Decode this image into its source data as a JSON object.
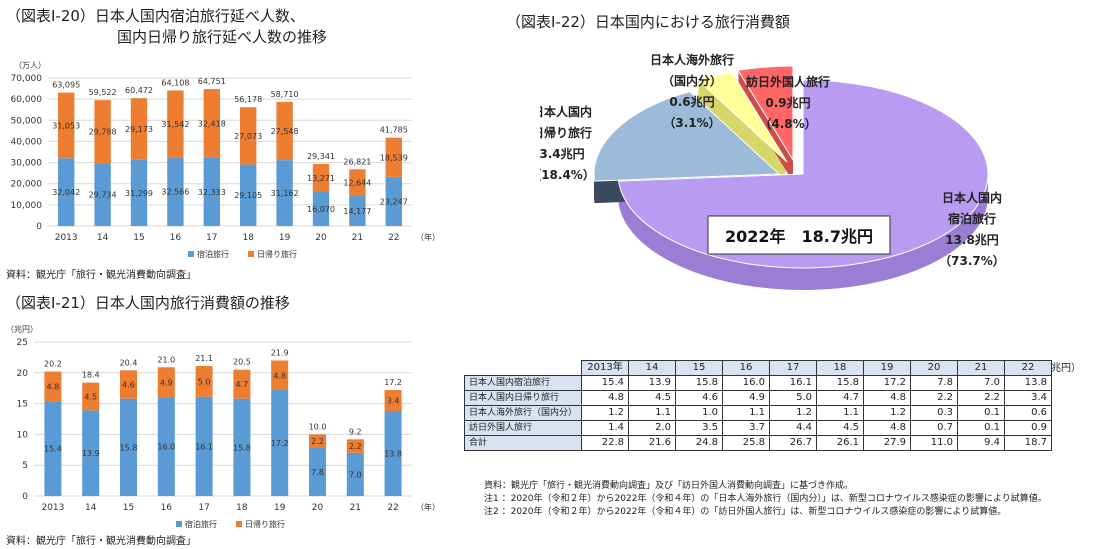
{
  "colors": {
    "lodging": "#5b9bd5",
    "day": "#ed7d31",
    "pie_lodging": "#b99cf2",
    "pie_day": "#9bbbd9",
    "pie_abroad": "#ffff99",
    "pie_inbound": "#ff6666"
  },
  "fig20": {
    "title_line1": "（図表Ⅰ-20）日本人国内宿泊旅行延べ人数、",
    "title_line2": "国内日帰り旅行延べ人数の推移",
    "unit": "（万人）",
    "year_suffix": "（年）",
    "source": "資料：観光庁「旅行・観光消費動向調査」"
  },
  "fig21": {
    "title": "（図表Ⅰ-21）日本人国内旅行消費額の推移",
    "unit": "（兆円）",
    "year_suffix": "（年）",
    "source": "資料：観光庁「旅行・観光消費動向調査」"
  },
  "fig22": {
    "title": "（図表Ⅰ-22）日本国内における旅行消費額",
    "center_label": "2022年　18.7兆円",
    "unit": "（単位：兆円）",
    "table": {
      "years": [
        "2013年",
        "14",
        "15",
        "16",
        "17",
        "18",
        "19",
        "20",
        "21",
        "22"
      ],
      "rows": [
        {
          "label": "日本人国内宿泊旅行",
          "values": [
            "15.4",
            "13.9",
            "15.8",
            "16.0",
            "16.1",
            "15.8",
            "17.2",
            "7.8",
            "7.0",
            "13.8"
          ]
        },
        {
          "label": "日本人国内日帰り旅行",
          "values": [
            "4.8",
            "4.5",
            "4.6",
            "4.9",
            "5.0",
            "4.7",
            "4.8",
            "2.2",
            "2.2",
            "3.4"
          ]
        },
        {
          "label": "日本人海外旅行（国内分）",
          "values": [
            "1.2",
            "1.1",
            "1.0",
            "1.1",
            "1.2",
            "1.1",
            "1.2",
            "0.3",
            "0.1",
            "0.6"
          ]
        },
        {
          "label": "訪日外国人旅行",
          "values": [
            "1.4",
            "2.0",
            "3.5",
            "3.7",
            "4.4",
            "4.5",
            "4.8",
            "0.7",
            "0.1",
            "0.9"
          ]
        },
        {
          "label": "合計",
          "values": [
            "22.8",
            "21.6",
            "24.8",
            "25.8",
            "26.7",
            "26.1",
            "27.9",
            "11.0",
            "9.4",
            "18.7"
          ]
        }
      ]
    },
    "notes": [
      "資料：観光庁「旅行・観光消費動向調査」及び「訪日外国人消費動向調査」に基づき作成。",
      "注1 ：2020年（令和２年）から2022年（令和４年）の「日本人海外旅行（国内分）」は、新型コロナウイルス感染症の影響により試算値。",
      "注2 ：2020年（令和２年）から2022年（令和４年）の「訪日外国人旅行」は、新型コロナウイルス感染症の影響により試算値。"
    ]
  },
  "chart_data": [
    {
      "type": "bar",
      "stacked": true,
      "categories": [
        "2013",
        "14",
        "15",
        "16",
        "17",
        "18",
        "19",
        "20",
        "21",
        "22"
      ],
      "series": [
        {
          "name": "宿泊旅行",
          "values": [
            32042,
            29734,
            31299,
            32566,
            32333,
            29105,
            31162,
            16070,
            14177,
            23247
          ]
        },
        {
          "name": "日帰り旅行",
          "values": [
            31053,
            29788,
            29173,
            31542,
            32418,
            27073,
            27548,
            13271,
            12644,
            18539
          ]
        }
      ],
      "totals": [
        63095,
        59522,
        60472,
        64108,
        64751,
        56178,
        58710,
        29341,
        26821,
        41785
      ],
      "ylim": [
        0,
        70000
      ],
      "yticks": [
        0,
        10000,
        20000,
        30000,
        40000,
        50000,
        60000,
        70000
      ],
      "ytick_labels": [
        "0",
        "10,000",
        "20,000",
        "30,000",
        "40,000",
        "50,000",
        "60,000",
        "70,000"
      ],
      "legend": "bottom",
      "grid": true
    },
    {
      "type": "bar",
      "stacked": true,
      "categories": [
        "2013",
        "14",
        "15",
        "16",
        "17",
        "18",
        "19",
        "20",
        "21",
        "22"
      ],
      "series": [
        {
          "name": "宿泊旅行",
          "values": [
            15.4,
            13.9,
            15.8,
            16.0,
            16.1,
            15.8,
            17.2,
            7.8,
            7.0,
            13.8
          ]
        },
        {
          "name": "日帰り旅行",
          "values": [
            4.8,
            4.5,
            4.6,
            4.9,
            5.0,
            4.7,
            4.8,
            2.2,
            2.2,
            3.4
          ]
        }
      ],
      "totals": [
        20.2,
        18.4,
        20.4,
        21.0,
        21.1,
        20.5,
        21.9,
        10.0,
        9.2,
        17.2
      ],
      "ylim": [
        0,
        25
      ],
      "yticks": [
        0,
        5,
        10,
        15,
        20,
        25
      ],
      "legend": "bottom",
      "grid": true
    },
    {
      "type": "pie",
      "slices": [
        {
          "label_lines": [
            "日本人国内",
            "宿泊旅行",
            "13.8兆円",
            "（73.7%）"
          ],
          "value": 13.8,
          "percent": 73.7
        },
        {
          "label_lines": [
            "日本人国内",
            "日帰り旅行",
            "3.4兆円",
            "（18.4%）"
          ],
          "value": 3.4,
          "percent": 18.4
        },
        {
          "label_lines": [
            "日本人海外旅行",
            "（国内分）",
            "0.6兆円",
            "（3.1%）"
          ],
          "value": 0.6,
          "percent": 3.1
        },
        {
          "label_lines": [
            "訪日外国人旅行",
            "0.9兆円",
            "（4.8%）"
          ],
          "value": 0.9,
          "percent": 4.8
        }
      ]
    }
  ]
}
